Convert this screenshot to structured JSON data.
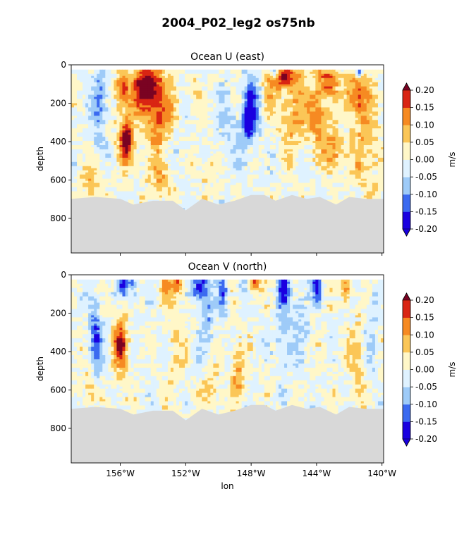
{
  "chart_data": [
    {
      "type": "heatmap",
      "suptitle": "2004_P02_leg2 os75nb",
      "title": "Ocean U (east)",
      "xlabel": "",
      "ylabel": "depth",
      "xlim": [
        -159.0,
        -139.9
      ],
      "ylim": [
        980,
        0
      ],
      "xticks": [
        -156,
        -152,
        -148,
        -144,
        -140
      ],
      "xtick_labels": [
        "156°W",
        "152°W",
        "148°W",
        "144°W",
        "140°W"
      ],
      "show_xtick_labels": false,
      "yticks": [
        0,
        200,
        400,
        600,
        800
      ],
      "ytick_labels": [
        "0",
        "200",
        "400",
        "600",
        "800"
      ],
      "colorbar": {
        "label": "m/s",
        "levels": [
          -0.2,
          -0.15,
          -0.1,
          -0.05,
          0.0,
          0.05,
          0.1,
          0.15,
          0.2
        ],
        "tick_labels": [
          "-0.20",
          "-0.15",
          "-0.10",
          "-0.05",
          "0.00",
          "0.05",
          "0.10",
          "0.15",
          "0.20"
        ],
        "colors": [
          "#1a00e0",
          "#3b6af0",
          "#9ecbf8",
          "#dff2ff",
          "#fff7c8",
          "#fbc657",
          "#f68a22",
          "#d92513",
          "#7a0322"
        ],
        "extend": "both"
      },
      "seabed_color": "#d8d8d8",
      "bottom_depth": [
        {
          "lon": -159.0,
          "depth": 700
        },
        {
          "lon": -157.5,
          "depth": 690
        },
        {
          "lon": -156.0,
          "depth": 700
        },
        {
          "lon": -155.2,
          "depth": 730
        },
        {
          "lon": -154.0,
          "depth": 710
        },
        {
          "lon": -152.8,
          "depth": 710
        },
        {
          "lon": -152.0,
          "depth": 760
        },
        {
          "lon": -151.0,
          "depth": 700
        },
        {
          "lon": -150.0,
          "depth": 730
        },
        {
          "lon": -149.0,
          "depth": 710
        },
        {
          "lon": -148.0,
          "depth": 680
        },
        {
          "lon": -147.2,
          "depth": 680
        },
        {
          "lon": -146.5,
          "depth": 710
        },
        {
          "lon": -145.5,
          "depth": 680
        },
        {
          "lon": -144.6,
          "depth": 700
        },
        {
          "lon": -143.8,
          "depth": 690
        },
        {
          "lon": -142.8,
          "depth": 730
        },
        {
          "lon": -142.0,
          "depth": 690
        },
        {
          "lon": -141.0,
          "depth": 700
        },
        {
          "lon": -139.9,
          "depth": 700
        }
      ],
      "features": [
        {
          "lon": -154.4,
          "depth": 110,
          "value": 0.24,
          "dlon": 0.8,
          "ddepth": 110
        },
        {
          "lon": -153.6,
          "depth": 250,
          "value": 0.15,
          "dlon": 0.9,
          "ddepth": 200
        },
        {
          "lon": -155.6,
          "depth": 400,
          "value": 0.2,
          "dlon": 0.35,
          "ddepth": 90
        },
        {
          "lon": -155.6,
          "depth": 300,
          "value": 0.09,
          "dlon": 0.6,
          "ddepth": 200
        },
        {
          "lon": -155.9,
          "depth": 120,
          "value": 0.12,
          "dlon": 0.4,
          "ddepth": 80
        },
        {
          "lon": -157.2,
          "depth": 160,
          "value": -0.11,
          "dlon": 0.4,
          "ddepth": 150
        },
        {
          "lon": -157.5,
          "depth": 330,
          "value": -0.05,
          "dlon": 0.6,
          "ddepth": 150
        },
        {
          "lon": -152.7,
          "depth": 400,
          "value": -0.03,
          "dlon": 0.8,
          "ddepth": 250
        },
        {
          "lon": -151.5,
          "depth": 150,
          "value": 0.07,
          "dlon": 0.35,
          "ddepth": 90
        },
        {
          "lon": -148.0,
          "depth": 220,
          "value": -0.15,
          "dlon": 0.55,
          "ddepth": 180
        },
        {
          "lon": -148.2,
          "depth": 300,
          "value": -0.18,
          "dlon": 0.3,
          "ddepth": 70
        },
        {
          "lon": -149.3,
          "depth": 380,
          "value": -0.05,
          "dlon": 0.9,
          "ddepth": 250
        },
        {
          "lon": -147.0,
          "depth": 150,
          "value": 0.06,
          "dlon": 0.5,
          "ddepth": 120
        },
        {
          "lon": -146.0,
          "depth": 60,
          "value": 0.17,
          "dlon": 0.9,
          "ddepth": 60
        },
        {
          "lon": -145.5,
          "depth": 260,
          "value": 0.1,
          "dlon": 0.7,
          "ddepth": 200
        },
        {
          "lon": -144.0,
          "depth": 250,
          "value": 0.13,
          "dlon": 0.7,
          "ddepth": 150
        },
        {
          "lon": -143.3,
          "depth": 80,
          "value": 0.14,
          "dlon": 0.6,
          "ddepth": 80
        },
        {
          "lon": -141.5,
          "depth": 160,
          "value": 0.15,
          "dlon": 0.8,
          "ddepth": 120
        },
        {
          "lon": -141.0,
          "depth": 450,
          "value": 0.09,
          "dlon": 0.8,
          "ddepth": 200
        },
        {
          "lon": -143.0,
          "depth": 450,
          "value": 0.13,
          "dlon": 0.6,
          "ddepth": 100
        },
        {
          "lon": -146.6,
          "depth": 30,
          "value": -0.18,
          "dlon": 0.25,
          "ddepth": 40
        },
        {
          "lon": -141.4,
          "depth": 30,
          "value": -0.17,
          "dlon": 0.2,
          "ddepth": 40
        },
        {
          "lon": -157.8,
          "depth": 600,
          "value": 0.08,
          "dlon": 0.6,
          "ddepth": 100
        },
        {
          "lon": -153.5,
          "depth": 600,
          "value": 0.08,
          "dlon": 0.8,
          "ddepth": 100
        },
        {
          "lon": -150.5,
          "depth": 550,
          "value": 0.04,
          "dlon": 0.9,
          "ddepth": 150
        }
      ]
    },
    {
      "type": "heatmap",
      "title": "Ocean V (north)",
      "xlabel": "lon",
      "ylabel": "depth",
      "xlim": [
        -159.0,
        -139.9
      ],
      "ylim": [
        980,
        0
      ],
      "xticks": [
        -156,
        -152,
        -148,
        -144,
        -140
      ],
      "xtick_labels": [
        "156°W",
        "152°W",
        "148°W",
        "144°W",
        "140°W"
      ],
      "show_xtick_labels": true,
      "yticks": [
        0,
        200,
        400,
        600,
        800
      ],
      "ytick_labels": [
        "0",
        "200",
        "400",
        "600",
        "800"
      ],
      "colorbar": {
        "label": "m/s",
        "levels": [
          -0.2,
          -0.15,
          -0.1,
          -0.05,
          0.0,
          0.05,
          0.1,
          0.15,
          0.2
        ],
        "tick_labels": [
          "-0.20",
          "-0.15",
          "-0.10",
          "-0.05",
          "0.00",
          "0.05",
          "0.10",
          "0.15",
          "0.20"
        ],
        "colors": [
          "#1a00e0",
          "#3b6af0",
          "#9ecbf8",
          "#dff2ff",
          "#fff7c8",
          "#fbc657",
          "#f68a22",
          "#d92513",
          "#7a0322"
        ],
        "extend": "both"
      },
      "seabed_color": "#d8d8d8",
      "bottom_depth": [
        {
          "lon": -159.0,
          "depth": 700
        },
        {
          "lon": -157.5,
          "depth": 690
        },
        {
          "lon": -156.0,
          "depth": 700
        },
        {
          "lon": -155.2,
          "depth": 730
        },
        {
          "lon": -154.0,
          "depth": 710
        },
        {
          "lon": -152.8,
          "depth": 710
        },
        {
          "lon": -152.0,
          "depth": 760
        },
        {
          "lon": -151.0,
          "depth": 700
        },
        {
          "lon": -150.0,
          "depth": 730
        },
        {
          "lon": -149.0,
          "depth": 710
        },
        {
          "lon": -148.0,
          "depth": 680
        },
        {
          "lon": -147.2,
          "depth": 680
        },
        {
          "lon": -146.5,
          "depth": 710
        },
        {
          "lon": -145.5,
          "depth": 680
        },
        {
          "lon": -144.6,
          "depth": 700
        },
        {
          "lon": -143.8,
          "depth": 690
        },
        {
          "lon": -142.8,
          "depth": 730
        },
        {
          "lon": -142.0,
          "depth": 690
        },
        {
          "lon": -141.0,
          "depth": 700
        },
        {
          "lon": -139.9,
          "depth": 700
        }
      ],
      "features": [
        {
          "lon": -157.5,
          "depth": 350,
          "value": -0.14,
          "dlon": 0.4,
          "ddepth": 200
        },
        {
          "lon": -156.0,
          "depth": 360,
          "value": 0.17,
          "dlon": 0.3,
          "ddepth": 80
        },
        {
          "lon": -155.9,
          "depth": 400,
          "value": 0.08,
          "dlon": 0.5,
          "ddepth": 200
        },
        {
          "lon": -155.8,
          "depth": 50,
          "value": -0.17,
          "dlon": 0.3,
          "ddepth": 60
        },
        {
          "lon": -155.2,
          "depth": 50,
          "value": -0.12,
          "dlon": 0.3,
          "ddepth": 70
        },
        {
          "lon": -153.2,
          "depth": 50,
          "value": 0.1,
          "dlon": 0.4,
          "ddepth": 80
        },
        {
          "lon": -152.5,
          "depth": 40,
          "value": 0.14,
          "dlon": 0.3,
          "ddepth": 60
        },
        {
          "lon": -151.2,
          "depth": 60,
          "value": -0.18,
          "dlon": 0.5,
          "ddepth": 80
        },
        {
          "lon": -150.7,
          "depth": 200,
          "value": -0.08,
          "dlon": 0.4,
          "ddepth": 250
        },
        {
          "lon": -149.7,
          "depth": 100,
          "value": -0.12,
          "dlon": 0.3,
          "ddepth": 120
        },
        {
          "lon": -148.8,
          "depth": 500,
          "value": 0.1,
          "dlon": 0.4,
          "ddepth": 150
        },
        {
          "lon": -148.5,
          "depth": 60,
          "value": -0.06,
          "dlon": 0.4,
          "ddepth": 80
        },
        {
          "lon": -147.8,
          "depth": 40,
          "value": 0.14,
          "dlon": 0.4,
          "ddepth": 50
        },
        {
          "lon": -146.0,
          "depth": 60,
          "value": -0.18,
          "dlon": 0.3,
          "ddepth": 80
        },
        {
          "lon": -146.0,
          "depth": 300,
          "value": -0.08,
          "dlon": 0.5,
          "ddepth": 200
        },
        {
          "lon": -145.0,
          "depth": 200,
          "value": -0.07,
          "dlon": 0.5,
          "ddepth": 200
        },
        {
          "lon": -144.0,
          "depth": 60,
          "value": -0.14,
          "dlon": 0.3,
          "ddepth": 80
        },
        {
          "lon": -142.2,
          "depth": 60,
          "value": 0.13,
          "dlon": 0.3,
          "ddepth": 80
        },
        {
          "lon": -141.5,
          "depth": 450,
          "value": 0.07,
          "dlon": 0.5,
          "ddepth": 200
        },
        {
          "lon": -140.6,
          "depth": 300,
          "value": -0.06,
          "dlon": 0.4,
          "ddepth": 250
        },
        {
          "lon": -152.6,
          "depth": 350,
          "value": 0.04,
          "dlon": 0.6,
          "ddepth": 250
        },
        {
          "lon": -150.5,
          "depth": 600,
          "value": 0.08,
          "dlon": 0.5,
          "ddepth": 100
        },
        {
          "lon": -157.8,
          "depth": 580,
          "value": 0.08,
          "dlon": 0.4,
          "ddepth": 100
        }
      ]
    }
  ]
}
